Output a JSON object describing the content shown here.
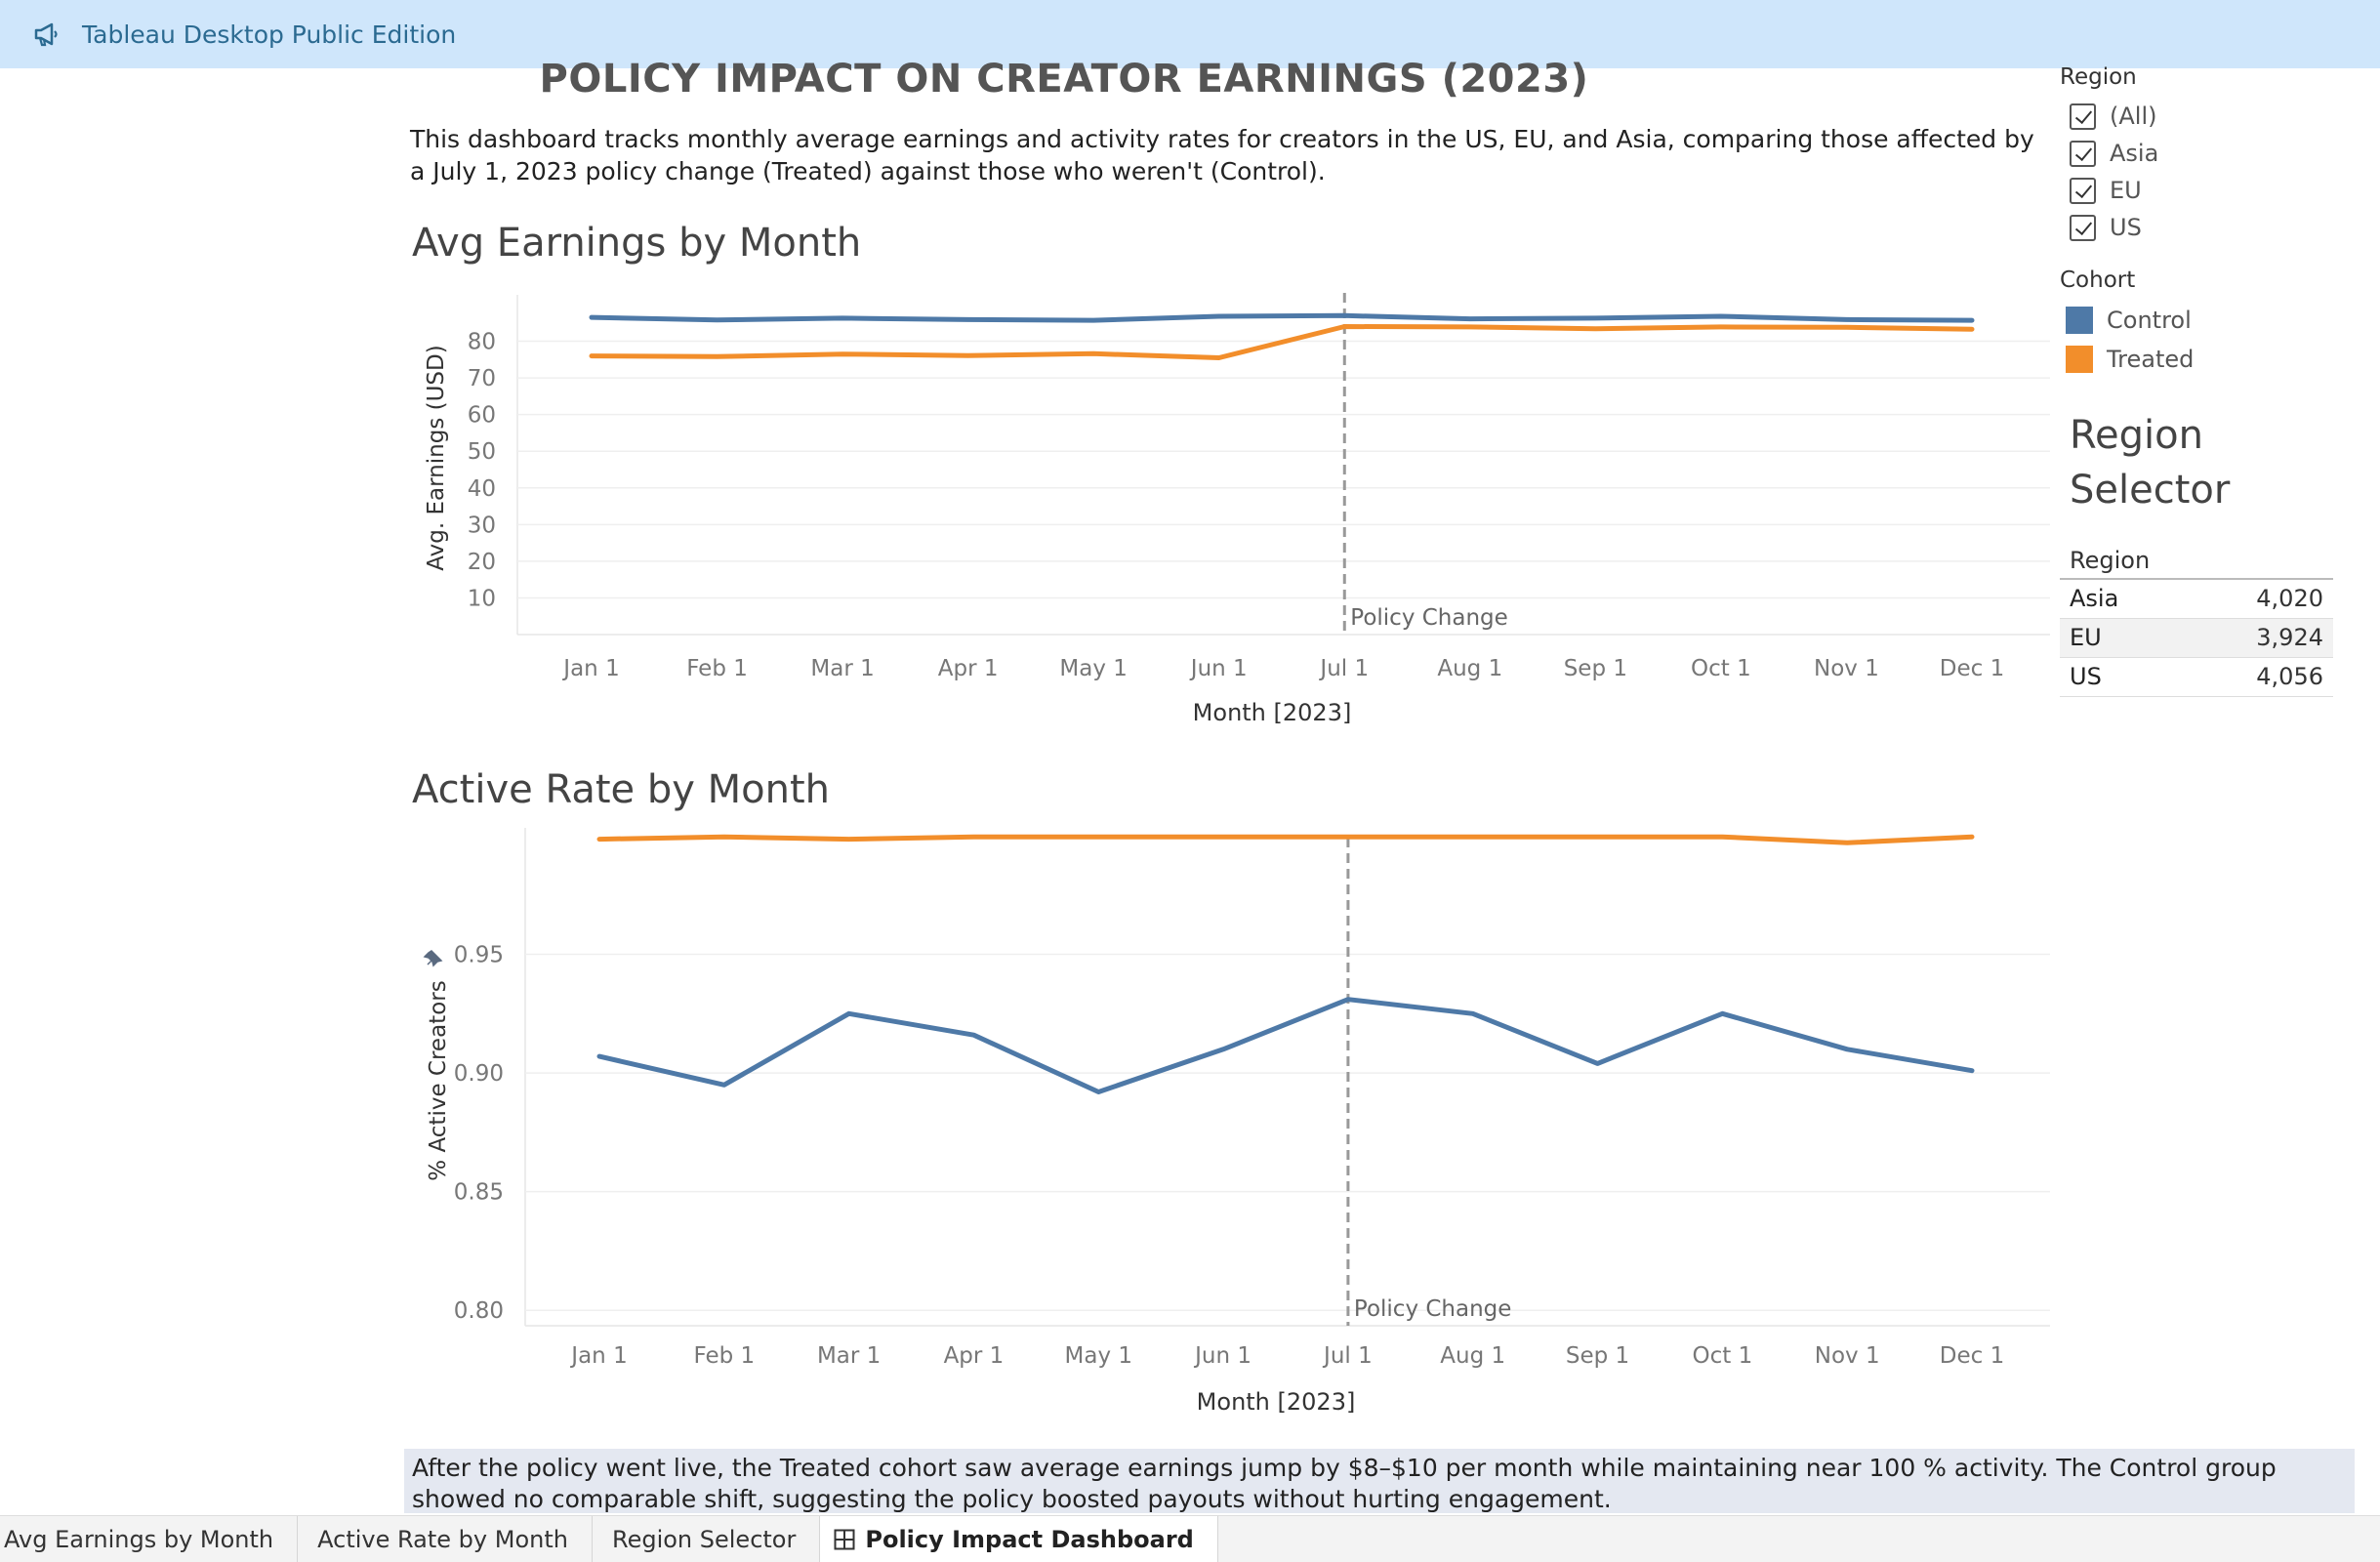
{
  "app": {
    "title": "Tableau Desktop Public Edition"
  },
  "dashboard": {
    "title": "POLICY IMPACT ON CREATOR EARNINGS (2023)",
    "description": "This dashboard tracks monthly average earnings and activity rates for creators in the US, EU, and Asia, comparing those affected by a July 1, 2023 policy change (Treated) against those who weren't (Control).",
    "conclusion": "After the policy went live, the Treated cohort saw average earnings jump by $8–$10 per month while maintaining near 100 % activity. The Control group showed no comparable shift, suggesting the policy boosted payouts without hurting engagement."
  },
  "colors": {
    "control": "#4e79a7",
    "treated": "#f28e2b",
    "policy_line": "#999999"
  },
  "chart_data": [
    {
      "type": "line",
      "title": "Avg Earnings by Month",
      "xlabel": "Month [2023]",
      "ylabel": "Avg. Earnings (USD)",
      "categories": [
        "Jan 1",
        "Feb 1",
        "Mar 1",
        "Apr 1",
        "May 1",
        "Jun 1",
        "Jul 1",
        "Aug 1",
        "Sep 1",
        "Oct 1",
        "Nov 1",
        "Dec 1"
      ],
      "yticks": [
        10,
        20,
        30,
        40,
        50,
        60,
        70,
        80
      ],
      "ylim": [
        0,
        90
      ],
      "series": [
        {
          "name": "Control",
          "values": [
            86.5,
            85.8,
            86.3,
            85.9,
            85.7,
            86.8,
            87.0,
            86.1,
            86.3,
            86.8,
            85.9,
            85.7
          ]
        },
        {
          "name": "Treated",
          "values": [
            76.0,
            75.8,
            76.5,
            76.1,
            76.6,
            75.5,
            84.0,
            83.9,
            83.4,
            83.9,
            83.8,
            83.3
          ]
        }
      ],
      "annotation": {
        "label": "Policy Change",
        "at": "Jul 1"
      },
      "grid": true
    },
    {
      "type": "line",
      "title": "Active Rate by Month",
      "xlabel": "Month [2023]",
      "ylabel": "% Active Creators",
      "categories": [
        "Jan 1",
        "Feb 1",
        "Mar 1",
        "Apr 1",
        "May 1",
        "Jun 1",
        "Jul 1",
        "Aug 1",
        "Sep 1",
        "Oct 1",
        "Nov 1",
        "Dec 1"
      ],
      "yticks": [
        0.8,
        0.85,
        0.9,
        0.95
      ],
      "ytick_labels": [
        "0.80",
        "0.85",
        "0.90",
        "0.95"
      ],
      "ylim": [
        0.7935,
        1.0
      ],
      "series": [
        {
          "name": "Control",
          "values": [
            0.907,
            0.895,
            0.925,
            0.916,
            0.892,
            0.91,
            0.931,
            0.925,
            0.904,
            0.925,
            0.91,
            0.901
          ]
        },
        {
          "name": "Treated",
          "values": [
            0.9985,
            0.9995,
            0.9985,
            0.9995,
            0.9995,
            0.9995,
            0.9995,
            0.9995,
            0.9995,
            0.9995,
            0.997,
            0.9995
          ]
        }
      ],
      "annotation": {
        "label": "Policy Change",
        "at": "Jul 1"
      },
      "grid": true
    }
  ],
  "filters": {
    "region": {
      "title": "Region",
      "items": [
        {
          "label": "(All)",
          "checked": true
        },
        {
          "label": "Asia",
          "checked": true
        },
        {
          "label": "EU",
          "checked": true
        },
        {
          "label": "US",
          "checked": true
        }
      ]
    }
  },
  "legend": {
    "title": "Cohort",
    "items": [
      "Control",
      "Treated"
    ]
  },
  "region_selector": {
    "title": "Region Selector",
    "column": "Region",
    "rows": [
      {
        "region": "Asia",
        "value": "4,020"
      },
      {
        "region": "EU",
        "value": "3,924"
      },
      {
        "region": "US",
        "value": "4,056"
      }
    ]
  },
  "tabs": [
    {
      "label": "Avg Earnings by Month",
      "active": false
    },
    {
      "label": "Active Rate by Month",
      "active": false
    },
    {
      "label": "Region Selector",
      "active": false
    },
    {
      "label": "Policy Impact Dashboard",
      "active": true
    }
  ]
}
